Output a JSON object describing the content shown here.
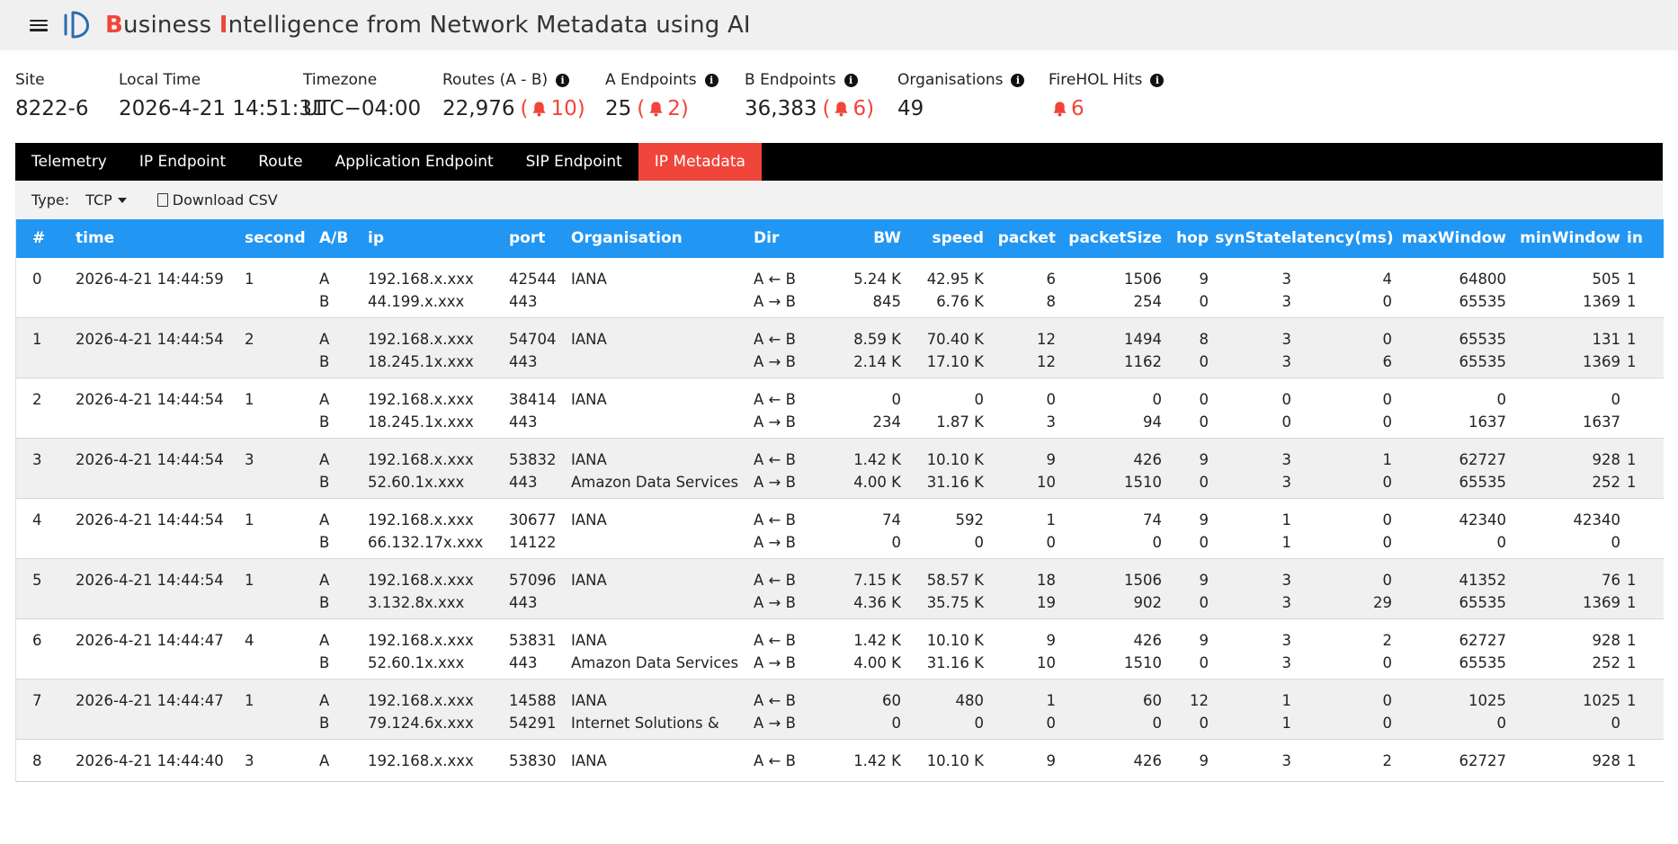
{
  "header": {
    "title_parts": [
      {
        "text": "B",
        "hl": true
      },
      {
        "text": "usiness ",
        "hl": false
      },
      {
        "text": "I",
        "hl": true
      },
      {
        "text": "ntelligence from Network Metadata using AI",
        "hl": false
      }
    ]
  },
  "stats": [
    {
      "label": "Site",
      "value": "8222-6",
      "info": false
    },
    {
      "label": "Local Time",
      "value": "2026-4-21 14:51:31",
      "info": false
    },
    {
      "label": "Timezone",
      "value": "UTC−04:00",
      "info": false
    },
    {
      "label": "Routes (A - B)",
      "value": "22,976",
      "alert": "10",
      "info": true
    },
    {
      "label": "A Endpoints",
      "value": "25",
      "alert": "2",
      "info": true
    },
    {
      "label": "B Endpoints",
      "value": "36,383",
      "alert": "6",
      "info": true
    },
    {
      "label": "Organisations",
      "value": "49",
      "info": true
    },
    {
      "label": "FireHOL Hits",
      "value": "",
      "bell_count": "6",
      "info": true
    }
  ],
  "tabs": [
    {
      "label": "Telemetry",
      "active": false
    },
    {
      "label": "IP Endpoint",
      "active": false
    },
    {
      "label": "Route",
      "active": false
    },
    {
      "label": "Application Endpoint",
      "active": false
    },
    {
      "label": "SIP Endpoint",
      "active": false
    },
    {
      "label": "IP Metadata",
      "active": true
    }
  ],
  "toolbar": {
    "type_label": "Type:",
    "type_value": "TCP",
    "download_label": "Download CSV"
  },
  "table": {
    "columns": [
      "#",
      "time",
      "second",
      "A/B",
      "ip",
      "port",
      "Organisation",
      "Dir",
      "BW",
      "speed",
      "packet",
      "packetSize",
      "hop",
      "synState",
      "latency(ms)",
      "maxWindow",
      "minWindow",
      "in"
    ],
    "rows": [
      {
        "n": "0",
        "time": "2026-4-21 14:44:59",
        "second": "1",
        "ab": [
          "A",
          "B"
        ],
        "ip": [
          "192.168.x.xxx",
          "44.199.x.xxx"
        ],
        "port": [
          "42544",
          "443"
        ],
        "org": [
          "IANA",
          ""
        ],
        "dir": [
          "A ← B",
          "A → B"
        ],
        "bw": [
          "5.24 K",
          "845"
        ],
        "speed": [
          "42.95 K",
          "6.76 K"
        ],
        "packet": [
          "6",
          "8"
        ],
        "packetSize": [
          "1506",
          "254"
        ],
        "hop": [
          "9",
          "0"
        ],
        "syn": [
          "3",
          "3"
        ],
        "lat": [
          "4",
          "0"
        ],
        "maxW": [
          "64800",
          "65535"
        ],
        "minW": [
          "505",
          "1369"
        ],
        "in": [
          "1",
          "1"
        ]
      },
      {
        "n": "1",
        "time": "2026-4-21 14:44:54",
        "second": "2",
        "ab": [
          "A",
          "B"
        ],
        "ip": [
          "192.168.x.xxx",
          "18.245.1x.xxx"
        ],
        "port": [
          "54704",
          "443"
        ],
        "org": [
          "IANA",
          ""
        ],
        "dir": [
          "A ← B",
          "A → B"
        ],
        "bw": [
          "8.59 K",
          "2.14 K"
        ],
        "speed": [
          "70.40 K",
          "17.10 K"
        ],
        "packet": [
          "12",
          "12"
        ],
        "packetSize": [
          "1494",
          "1162"
        ],
        "hop": [
          "8",
          "0"
        ],
        "syn": [
          "3",
          "3"
        ],
        "lat": [
          "0",
          "6"
        ],
        "maxW": [
          "65535",
          "65535"
        ],
        "minW": [
          "131",
          "1369"
        ],
        "in": [
          "1",
          "1"
        ]
      },
      {
        "n": "2",
        "time": "2026-4-21 14:44:54",
        "second": "1",
        "ab": [
          "A",
          "B"
        ],
        "ip": [
          "192.168.x.xxx",
          "18.245.1x.xxx"
        ],
        "port": [
          "38414",
          "443"
        ],
        "org": [
          "IANA",
          ""
        ],
        "dir": [
          "A ← B",
          "A → B"
        ],
        "bw": [
          "0",
          "234"
        ],
        "speed": [
          "0",
          "1.87 K"
        ],
        "packet": [
          "0",
          "3"
        ],
        "packetSize": [
          "0",
          "94"
        ],
        "hop": [
          "0",
          "0"
        ],
        "syn": [
          "0",
          "0"
        ],
        "lat": [
          "0",
          "0"
        ],
        "maxW": [
          "0",
          "1637"
        ],
        "minW": [
          "0",
          "1637"
        ],
        "in": [
          "",
          ""
        ]
      },
      {
        "n": "3",
        "time": "2026-4-21 14:44:54",
        "second": "3",
        "ab": [
          "A",
          "B"
        ],
        "ip": [
          "192.168.x.xxx",
          "52.60.1x.xxx"
        ],
        "port": [
          "53832",
          "443"
        ],
        "org": [
          "IANA",
          "Amazon Data Services"
        ],
        "dir": [
          "A ← B",
          "A → B"
        ],
        "bw": [
          "1.42 K",
          "4.00 K"
        ],
        "speed": [
          "10.10 K",
          "31.16 K"
        ],
        "packet": [
          "9",
          "10"
        ],
        "packetSize": [
          "426",
          "1510"
        ],
        "hop": [
          "9",
          "0"
        ],
        "syn": [
          "3",
          "3"
        ],
        "lat": [
          "1",
          "0"
        ],
        "maxW": [
          "62727",
          "65535"
        ],
        "minW": [
          "928",
          "252"
        ],
        "in": [
          "1",
          "1"
        ]
      },
      {
        "n": "4",
        "time": "2026-4-21 14:44:54",
        "second": "1",
        "ab": [
          "A",
          "B"
        ],
        "ip": [
          "192.168.x.xxx",
          "66.132.17x.xxx"
        ],
        "port": [
          "30677",
          "14122"
        ],
        "org": [
          "IANA",
          ""
        ],
        "dir": [
          "A ← B",
          "A → B"
        ],
        "bw": [
          "74",
          "0"
        ],
        "speed": [
          "592",
          "0"
        ],
        "packet": [
          "1",
          "0"
        ],
        "packetSize": [
          "74",
          "0"
        ],
        "hop": [
          "9",
          "0"
        ],
        "syn": [
          "1",
          "1"
        ],
        "lat": [
          "0",
          "0"
        ],
        "maxW": [
          "42340",
          "0"
        ],
        "minW": [
          "42340",
          "0"
        ],
        "in": [
          "",
          ""
        ]
      },
      {
        "n": "5",
        "time": "2026-4-21 14:44:54",
        "second": "1",
        "ab": [
          "A",
          "B"
        ],
        "ip": [
          "192.168.x.xxx",
          "3.132.8x.xxx"
        ],
        "port": [
          "57096",
          "443"
        ],
        "org": [
          "IANA",
          ""
        ],
        "dir": [
          "A ← B",
          "A → B"
        ],
        "bw": [
          "7.15 K",
          "4.36 K"
        ],
        "speed": [
          "58.57 K",
          "35.75 K"
        ],
        "packet": [
          "18",
          "19"
        ],
        "packetSize": [
          "1506",
          "902"
        ],
        "hop": [
          "9",
          "0"
        ],
        "syn": [
          "3",
          "3"
        ],
        "lat": [
          "0",
          "29"
        ],
        "maxW": [
          "41352",
          "65535"
        ],
        "minW": [
          "76",
          "1369"
        ],
        "in": [
          "1",
          "1"
        ]
      },
      {
        "n": "6",
        "time": "2026-4-21 14:44:47",
        "second": "4",
        "ab": [
          "A",
          "B"
        ],
        "ip": [
          "192.168.x.xxx",
          "52.60.1x.xxx"
        ],
        "port": [
          "53831",
          "443"
        ],
        "org": [
          "IANA",
          "Amazon Data Services"
        ],
        "dir": [
          "A ← B",
          "A → B"
        ],
        "bw": [
          "1.42 K",
          "4.00 K"
        ],
        "speed": [
          "10.10 K",
          "31.16 K"
        ],
        "packet": [
          "9",
          "10"
        ],
        "packetSize": [
          "426",
          "1510"
        ],
        "hop": [
          "9",
          "0"
        ],
        "syn": [
          "3",
          "3"
        ],
        "lat": [
          "2",
          "0"
        ],
        "maxW": [
          "62727",
          "65535"
        ],
        "minW": [
          "928",
          "252"
        ],
        "in": [
          "1",
          "1"
        ]
      },
      {
        "n": "7",
        "time": "2026-4-21 14:44:47",
        "second": "1",
        "ab": [
          "A",
          "B"
        ],
        "ip": [
          "192.168.x.xxx",
          "79.124.6x.xxx"
        ],
        "port": [
          "14588",
          "54291"
        ],
        "org": [
          "IANA",
          "Internet Solutions &"
        ],
        "dir": [
          "A ← B",
          "A → B"
        ],
        "bw": [
          "60",
          "0"
        ],
        "speed": [
          "480",
          "0"
        ],
        "packet": [
          "1",
          "0"
        ],
        "packetSize": [
          "60",
          "0"
        ],
        "hop": [
          "12",
          "0"
        ],
        "syn": [
          "1",
          "1"
        ],
        "lat": [
          "0",
          "0"
        ],
        "maxW": [
          "1025",
          "0"
        ],
        "minW": [
          "1025",
          "0"
        ],
        "in": [
          "1",
          ""
        ]
      },
      {
        "n": "8",
        "time": "2026-4-21 14:44:40",
        "second": "3",
        "ab": [
          "A",
          ""
        ],
        "ip": [
          "192.168.x.xxx",
          ""
        ],
        "port": [
          "53830",
          ""
        ],
        "org": [
          "IANA",
          ""
        ],
        "dir": [
          "A ← B",
          ""
        ],
        "bw": [
          "1.42 K",
          ""
        ],
        "speed": [
          "10.10 K",
          ""
        ],
        "packet": [
          "9",
          ""
        ],
        "packetSize": [
          "426",
          ""
        ],
        "hop": [
          "9",
          ""
        ],
        "syn": [
          "3",
          ""
        ],
        "lat": [
          "2",
          ""
        ],
        "maxW": [
          "62727",
          ""
        ],
        "minW": [
          "928",
          ""
        ],
        "in": [
          "1",
          ""
        ]
      }
    ]
  },
  "colors": {
    "accent": "#f0453a",
    "header_blue": "#2196f3",
    "tab_bg": "#000000"
  }
}
